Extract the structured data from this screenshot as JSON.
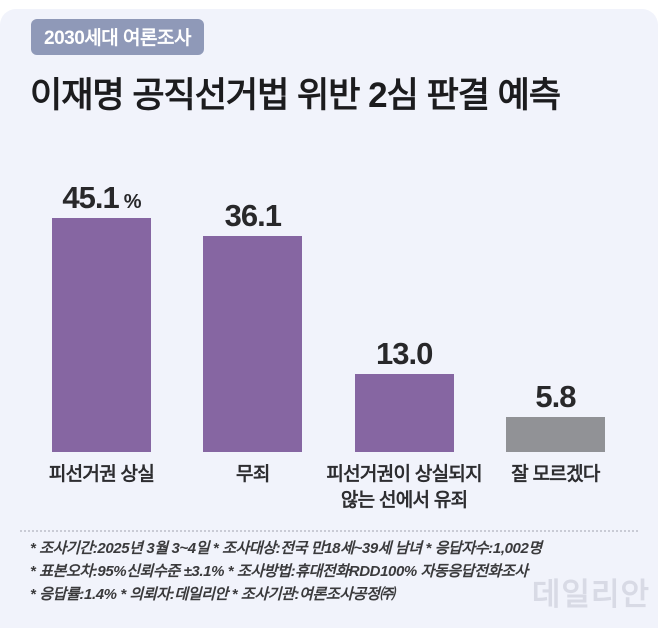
{
  "page": {
    "badge": "2030세대 여론조사",
    "title": "이재명 공직선거법 위반 2심 판결 예측",
    "watermark": "데일리안"
  },
  "chart_data": {
    "type": "bar",
    "title": "이재명 공직선거법 위반 2심 판결 예측",
    "categories": [
      "피선거권 상실",
      "무죄",
      "피선거권이 상실되지\n않는 선에서 유죄",
      "잘 모르겠다"
    ],
    "values": [
      45.1,
      36.1,
      13.0,
      5.8
    ],
    "unit": "%",
    "unit_shown_on_first_bar_only": true,
    "value_label_position": "above-bar",
    "ylim": [
      0,
      50
    ],
    "bar_colors": [
      "#8666a2",
      "#8666a2",
      "#8666a2",
      "#919296"
    ],
    "grid": false,
    "legend": false
  },
  "footnotes": {
    "line1": "* 조사기간:2025년 3월 3~4일  * 조사대상:전국 만18세~39세 남녀  * 응답자수:1,002명",
    "line2": "* 표본오차:95%신뢰수준 ±3.1%  * 조사방법:휴대전화RDD100% 자동응답전화조사",
    "line3": "* 응답률:1.4%  * 의뢰자:데일리안  * 조사기관:여론조사공정㈜"
  },
  "colors": {
    "background": "#f1f3fb",
    "bar_purple": "#8666a2",
    "bar_gray": "#919296",
    "badge_bg": "#8f99b8",
    "title_text": "#1c1c1e",
    "footnote_text": "#3a3a3c",
    "watermark": "#d8dae5"
  }
}
